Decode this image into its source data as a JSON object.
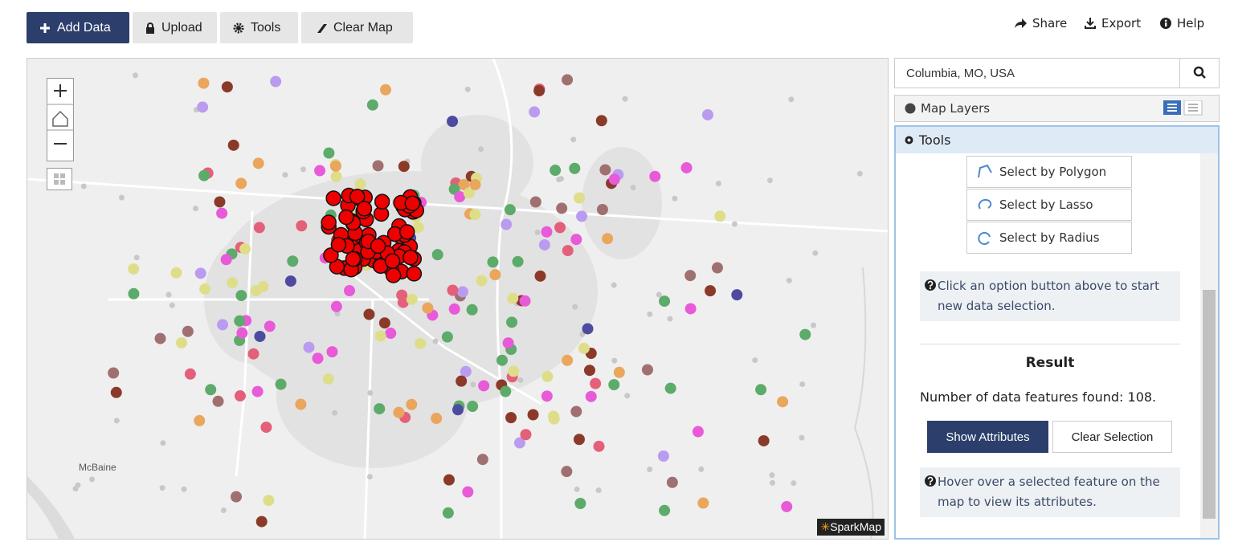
{
  "toolbar": {
    "buttons": [
      "Add Data",
      "Upload",
      "Tools",
      "Clear Map"
    ],
    "links": [
      "Share",
      "Export",
      "Help"
    ]
  },
  "map": {
    "labels": [
      "McBaine"
    ],
    "attribution": "SparkMap"
  },
  "panel": {
    "search": "Columbia, MO, USA",
    "layers_title": "Map Layers",
    "tools_title": "Tools",
    "select_options": [
      "Select by Polygon",
      "Select by Lasso",
      "Select by Radius"
    ],
    "info": "Click an option button above to start new data selection.",
    "result_title": "Result",
    "result_text": "Number of data features found: 108.",
    "buttons": [
      "Show Attributes",
      "Clear Selection"
    ],
    "hover_info": "Hover over a selected feature on the map to view its attributes."
  }
}
